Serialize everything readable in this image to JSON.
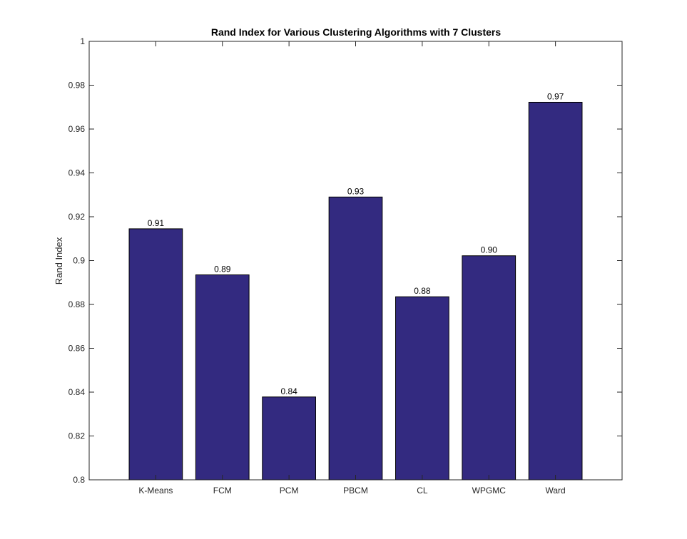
{
  "chart_data": {
    "type": "bar",
    "title": "Rand Index for Various Clustering Algorithms with 7 Clusters",
    "xlabel": "",
    "ylabel": "Rand Index",
    "categories": [
      "K-Means",
      "FCM",
      "PCM",
      "PBCM",
      "CL",
      "WPGMC",
      "Ward"
    ],
    "values": [
      0.9145,
      0.8935,
      0.8378,
      0.929,
      0.8835,
      0.9022,
      0.9722
    ],
    "data_labels": [
      "0.91",
      "0.89",
      "0.84",
      "0.93",
      "0.88",
      "0.90",
      "0.97"
    ],
    "ylim": [
      0.8,
      1
    ],
    "yticks": [
      0.8,
      0.82,
      0.84,
      0.86,
      0.88,
      0.9,
      0.92,
      0.94,
      0.96,
      0.98,
      1
    ],
    "ytick_labels": [
      "0.8",
      "0.82",
      "0.84",
      "0.86",
      "0.88",
      "0.9",
      "0.92",
      "0.94",
      "0.96",
      "0.98",
      "1"
    ],
    "bar_color": "#332a80",
    "grid": false
  }
}
